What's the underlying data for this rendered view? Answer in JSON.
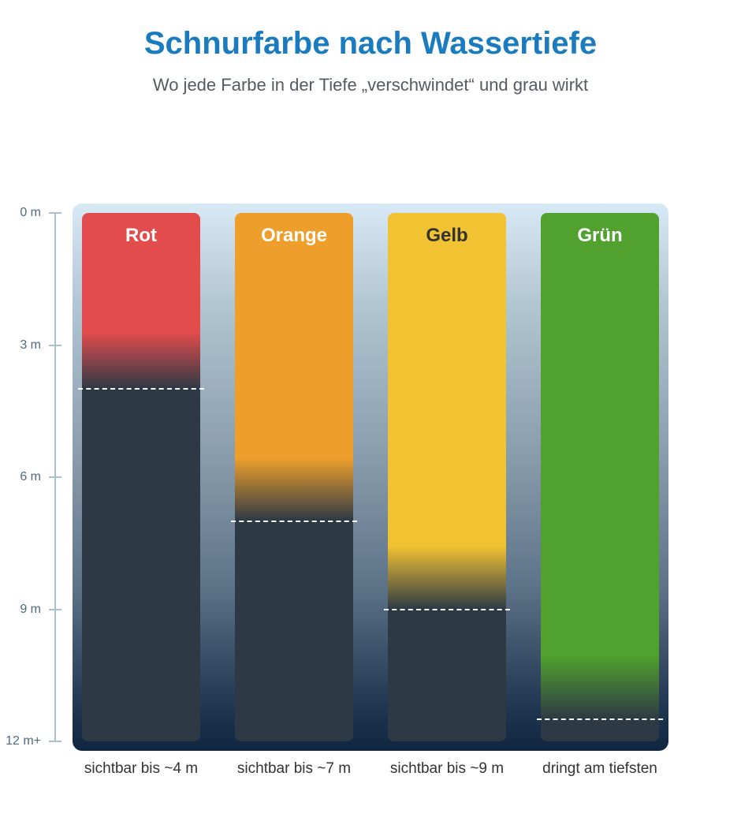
{
  "chart_data": {
    "type": "bar",
    "title": "Schnurfarbe nach Wassertiefe",
    "subtitle": "Wo jede Farbe in der Tiefe „verschwindet“ und grau wirkt",
    "y_ticks": [
      "0 m",
      "3 m",
      "6 m",
      "9 m",
      "12 m+"
    ],
    "ylim": [
      0,
      12
    ],
    "y_inverted": true,
    "categories": [
      "Rot",
      "Orange",
      "Gelb",
      "Grün"
    ],
    "visible_depth_m": [
      4,
      7,
      9,
      11.5
    ],
    "captions": [
      "sichtbar bis ~4 m",
      "sichtbar bis ~7 m",
      "sichtbar bis ~9 m",
      "dringt am tiefsten"
    ],
    "colors": [
      "#e24c4c",
      "#ee9f2b",
      "#f1c232",
      "#50a12d"
    ],
    "label_colors": [
      "#ffffff",
      "#ffffff",
      "#333333",
      "#ffffff"
    ],
    "faded_color": "#2d3945"
  }
}
